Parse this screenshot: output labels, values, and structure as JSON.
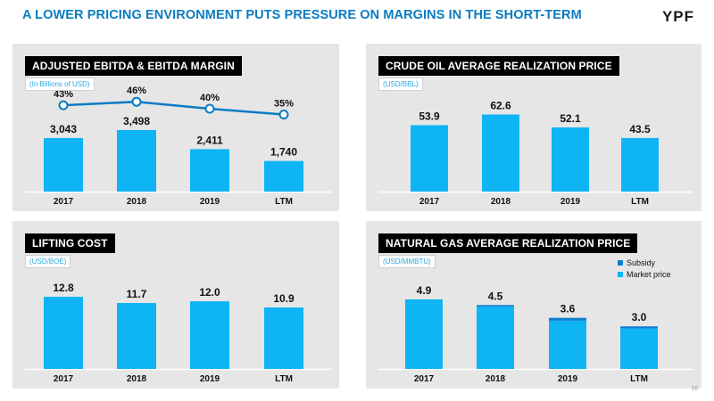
{
  "header": {
    "title": "A LOWER PRICING ENVIRONMENT PUTS PRESSURE ON MARGINS IN THE SHORT-TERM",
    "logo": "YPF"
  },
  "page_number": "16",
  "colors": {
    "bar": "#0fb4f4",
    "subsidy": "#0b7fcf",
    "line": "#0a7cc1",
    "title": "#0a7cc1"
  },
  "chart_data": [
    {
      "type": "bar",
      "title": "ADJUSTED EBITDA & EBITDA MARGIN",
      "unit": "(In Billions of USD)",
      "categories": [
        "2017",
        "2018",
        "2019",
        "LTM"
      ],
      "values": [
        3043,
        3498,
        2411,
        1740
      ],
      "value_labels": [
        "3,043",
        "3,498",
        "2,411",
        "1,740"
      ],
      "ylim": [
        0,
        3800
      ],
      "line_series": {
        "values": [
          43,
          46,
          40,
          35
        ],
        "labels": [
          "43%",
          "46%",
          "40%",
          "35%"
        ],
        "ylim": [
          30,
          50
        ]
      }
    },
    {
      "type": "bar",
      "title": "CRUDE OIL AVERAGE REALIZATION PRICE",
      "unit": "(USD/BBL)",
      "categories": [
        "2017",
        "2018",
        "2019",
        "LTM"
      ],
      "values": [
        53.9,
        62.6,
        52.1,
        43.5
      ],
      "value_labels": [
        "53.9",
        "62.6",
        "52.1",
        "43.5"
      ],
      "ylim": [
        0,
        68
      ]
    },
    {
      "type": "bar",
      "title": "LIFTING COST",
      "unit": "(USD/BOE)",
      "categories": [
        "2017",
        "2018",
        "2019",
        "LTM"
      ],
      "values": [
        12.8,
        11.7,
        12.0,
        10.9
      ],
      "value_labels": [
        "12.8",
        "11.7",
        "12.0",
        "10.9"
      ],
      "ylim": [
        0,
        13.6
      ]
    },
    {
      "type": "bar",
      "stacked": true,
      "title": "NATURAL GAS AVERAGE REALIZATION PRICE",
      "unit": "(USD/MMBTU)",
      "categories": [
        "2017",
        "2018",
        "2019",
        "LTM"
      ],
      "series": [
        {
          "name": "Market price",
          "values": [
            4.9,
            4.4,
            3.4,
            2.85
          ]
        },
        {
          "name": "Subsidy",
          "values": [
            0.0,
            0.1,
            0.2,
            0.15
          ]
        }
      ],
      "value_labels": [
        "4.9",
        "4.5",
        "3.6",
        "3.0"
      ],
      "ylim": [
        0,
        5.4
      ],
      "legend": "top-right"
    }
  ]
}
